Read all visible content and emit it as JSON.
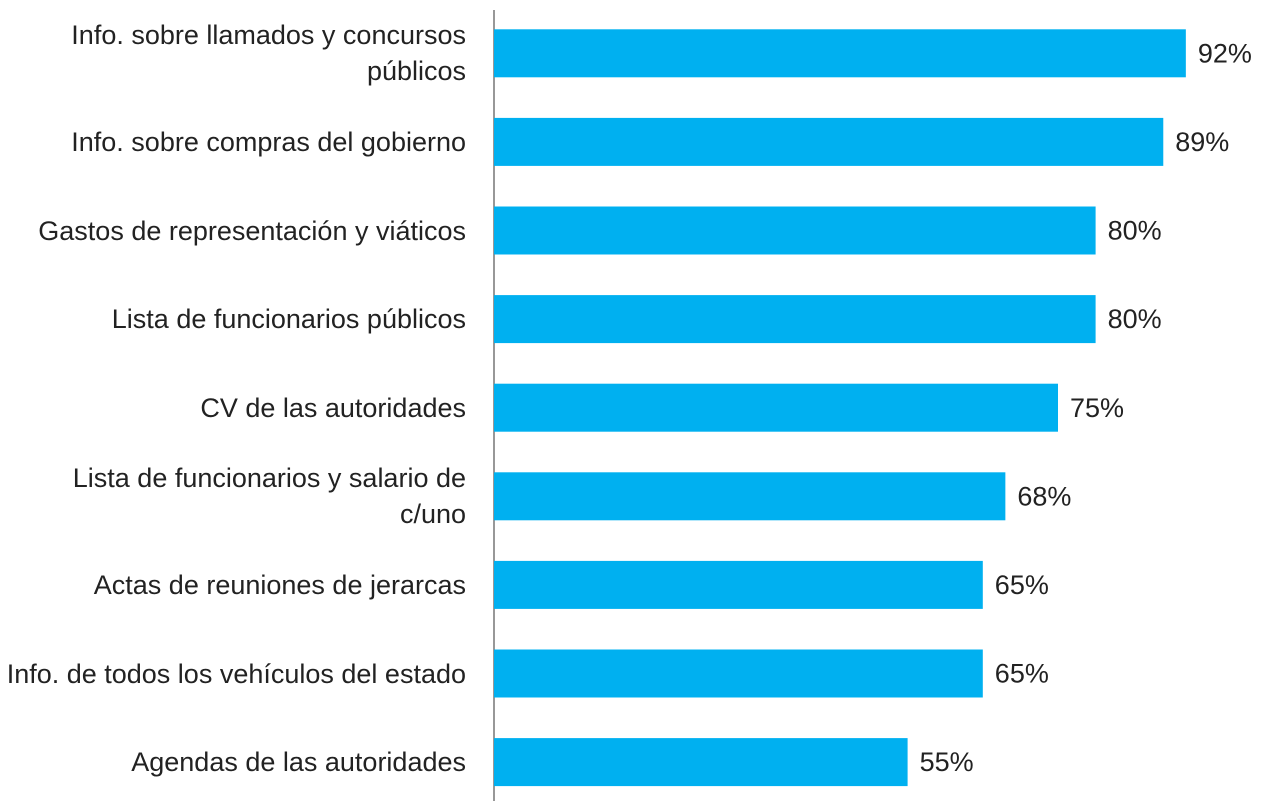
{
  "chart_data": {
    "type": "bar",
    "orientation": "horizontal",
    "categories": [
      "Info. sobre llamados y concursos públicos",
      "Info. sobre compras del gobierno",
      "Gastos de representación y viáticos",
      "Lista de funcionarios públicos",
      "CV de las autoridades",
      "Lista de funcionarios y salario de c/uno",
      "Actas de reuniones de jerarcas",
      "Info. de todos los vehículos del estado",
      "Agendas de las autoridades"
    ],
    "values": [
      92,
      89,
      80,
      80,
      75,
      68,
      65,
      65,
      55
    ],
    "value_labels": [
      "92%",
      "89%",
      "80%",
      "80%",
      "75%",
      "68%",
      "65%",
      "65%",
      "55%"
    ],
    "color": "#00b0f0",
    "xlim": [
      0,
      100
    ]
  }
}
